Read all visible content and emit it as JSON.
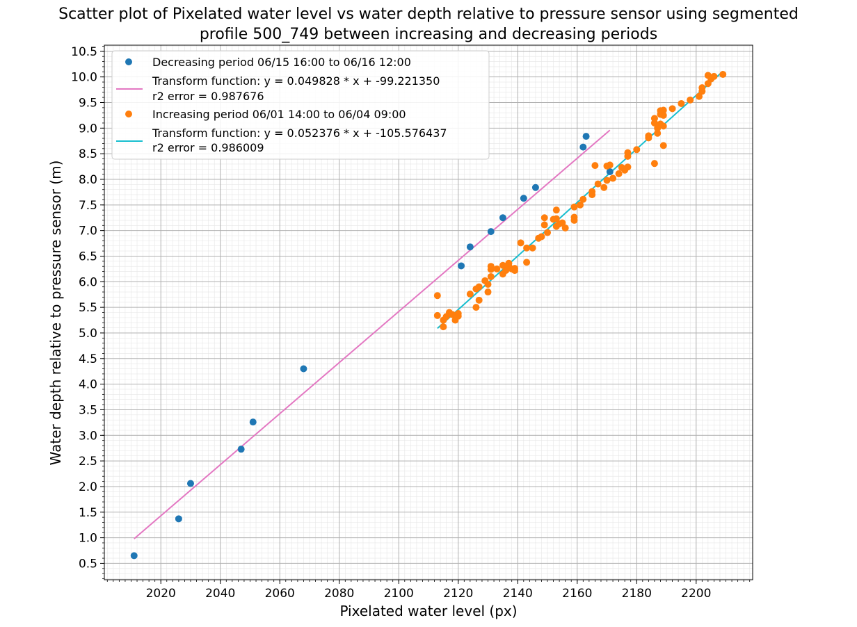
{
  "chart_data": {
    "type": "scatter",
    "title": "Scatter plot of Pixelated water level vs water depth relative to pressure sensor using segmented",
    "title_line2": "profile 500_749 between increasing and decreasing periods",
    "xlabel": "Pixelated water level (px)",
    "ylabel": "Water depth relative to pressure sensor (m)",
    "xlim": [
      2001,
      2219
    ],
    "ylim": [
      0.18,
      10.62
    ],
    "x_ticks": [
      2020,
      2040,
      2060,
      2080,
      2100,
      2120,
      2140,
      2160,
      2180,
      2200
    ],
    "x_tick_labels": [
      "2020",
      "2040",
      "2060",
      "2080",
      "2100",
      "2120",
      "2140",
      "2160",
      "2180",
      "2200"
    ],
    "y_ticks": [
      0.5,
      1.0,
      1.5,
      2.0,
      2.5,
      3.0,
      3.5,
      4.0,
      4.5,
      5.0,
      5.5,
      6.0,
      6.5,
      7.0,
      7.5,
      8.0,
      8.5,
      9.0,
      9.5,
      10.0,
      10.5
    ],
    "y_tick_labels": [
      "0.5",
      "1.0",
      "1.5",
      "2.0",
      "2.5",
      "3.0",
      "3.5",
      "4.0",
      "4.5",
      "5.0",
      "5.5",
      "6.0",
      "6.5",
      "7.0",
      "7.5",
      "8.0",
      "8.5",
      "9.0",
      "9.5",
      "10.0",
      "10.5"
    ],
    "grid": true,
    "minor_grid": true,
    "legend_position": "top-left",
    "series": [
      {
        "name": "Decreasing period 06/15 16:00 to 06/16 12:00",
        "kind": "scatter",
        "color": "#1f77b4",
        "points": [
          [
            2011,
            0.65
          ],
          [
            2026,
            1.37
          ],
          [
            2030,
            2.06
          ],
          [
            2047,
            2.73
          ],
          [
            2051,
            3.26
          ],
          [
            2068,
            4.3
          ],
          [
            2121,
            6.31
          ],
          [
            2124,
            6.68
          ],
          [
            2131,
            6.98
          ],
          [
            2135,
            7.25
          ],
          [
            2142,
            7.63
          ],
          [
            2146,
            7.84
          ],
          [
            2162,
            8.63
          ],
          [
            2163,
            8.84
          ],
          [
            2171,
            8.15
          ]
        ]
      },
      {
        "name": "Transform function: y = 0.049828 * x + -99.221350",
        "name_line2": "r2 error = 0.987676",
        "kind": "line",
        "color": "#e377c2",
        "points": [
          [
            2011,
            0.98
          ],
          [
            2171,
            8.96
          ]
        ]
      },
      {
        "name": "Increasing period 06/01 14:00 to 06/04 09:00",
        "kind": "scatter",
        "color": "#ff7f0e",
        "points": [
          [
            2113,
            5.73
          ],
          [
            2113,
            5.34
          ],
          [
            2115,
            5.12
          ],
          [
            2115,
            5.25
          ],
          [
            2116,
            5.32
          ],
          [
            2117,
            5.4
          ],
          [
            2118,
            5.36
          ],
          [
            2119,
            5.25
          ],
          [
            2120,
            5.38
          ],
          [
            2120,
            5.33
          ],
          [
            2124,
            5.76
          ],
          [
            2126,
            5.5
          ],
          [
            2126,
            5.86
          ],
          [
            2127,
            5.64
          ],
          [
            2127,
            5.9
          ],
          [
            2129,
            6.02
          ],
          [
            2130,
            5.8
          ],
          [
            2130,
            5.95
          ],
          [
            2131,
            6.1
          ],
          [
            2131,
            6.24
          ],
          [
            2131,
            6.3
          ],
          [
            2133,
            6.25
          ],
          [
            2135,
            6.32
          ],
          [
            2135,
            6.15
          ],
          [
            2136,
            6.22
          ],
          [
            2137,
            6.3
          ],
          [
            2137,
            6.36
          ],
          [
            2138,
            6.25
          ],
          [
            2139,
            6.26
          ],
          [
            2139,
            6.22
          ],
          [
            2141,
            6.76
          ],
          [
            2143,
            6.38
          ],
          [
            2143,
            6.66
          ],
          [
            2145,
            6.66
          ],
          [
            2147,
            6.85
          ],
          [
            2148,
            6.88
          ],
          [
            2149,
            7.25
          ],
          [
            2149,
            7.11
          ],
          [
            2150,
            6.96
          ],
          [
            2152,
            7.22
          ],
          [
            2153,
            7.4
          ],
          [
            2153,
            7.23
          ],
          [
            2153,
            7.08
          ],
          [
            2154,
            7.13
          ],
          [
            2155,
            7.15
          ],
          [
            2156,
            7.05
          ],
          [
            2159,
            7.2
          ],
          [
            2159,
            7.26
          ],
          [
            2159,
            7.46
          ],
          [
            2161,
            7.5
          ],
          [
            2162,
            7.61
          ],
          [
            2165,
            7.7
          ],
          [
            2165,
            7.76
          ],
          [
            2166,
            8.27
          ],
          [
            2167,
            7.91
          ],
          [
            2169,
            7.84
          ],
          [
            2170,
            8.26
          ],
          [
            2170,
            7.98
          ],
          [
            2171,
            8.28
          ],
          [
            2172,
            8.02
          ],
          [
            2174,
            8.11
          ],
          [
            2175,
            8.23
          ],
          [
            2176,
            8.18
          ],
          [
            2177,
            8.24
          ],
          [
            2177,
            8.45
          ],
          [
            2177,
            8.52
          ],
          [
            2180,
            8.58
          ],
          [
            2184,
            8.81
          ],
          [
            2184,
            8.85
          ],
          [
            2186,
            8.31
          ],
          [
            2186,
            9.19
          ],
          [
            2186,
            9.1
          ],
          [
            2187,
            8.9
          ],
          [
            2187,
            9.0
          ],
          [
            2188,
            9.08
          ],
          [
            2188,
            9.34
          ],
          [
            2188,
            9.27
          ],
          [
            2189,
            9.35
          ],
          [
            2189,
            8.66
          ],
          [
            2189,
            9.25
          ],
          [
            2189,
            9.04
          ],
          [
            2192,
            9.38
          ],
          [
            2195,
            9.48
          ],
          [
            2198,
            9.55
          ],
          [
            2201,
            9.62
          ],
          [
            2202,
            9.79
          ],
          [
            2202,
            9.72
          ],
          [
            2204,
            9.87
          ],
          [
            2204,
            10.03
          ],
          [
            2205,
            9.96
          ],
          [
            2206,
            10.01
          ],
          [
            2209,
            10.05
          ]
        ]
      },
      {
        "name": "Transform function: y = 0.052376 * x + -105.576437",
        "name_line2": "r2 error = 0.986009",
        "kind": "line",
        "color": "#17becf",
        "points": [
          [
            2113,
            5.09
          ],
          [
            2209,
            10.11
          ]
        ]
      }
    ]
  }
}
